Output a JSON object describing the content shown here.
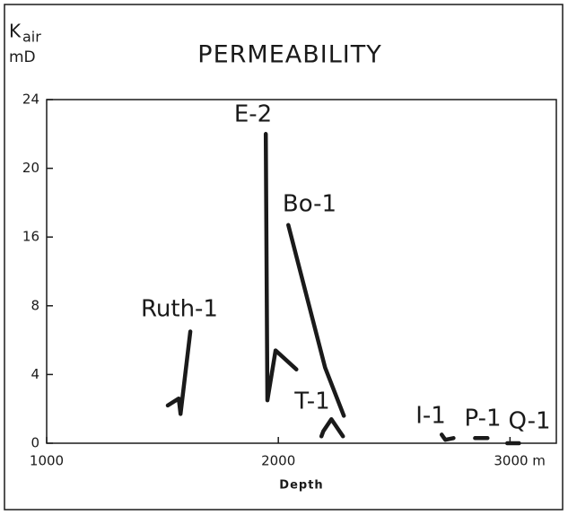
{
  "chart_data": {
    "type": "line",
    "title": "PERMEABILITY",
    "y_label": {
      "symbol": "K",
      "subscript": "air",
      "unit": "mD"
    },
    "x_label": "Depth",
    "xlim": [
      1000,
      3200
    ],
    "xticks": [
      1000,
      2000,
      {
        "value": 3000,
        "label": "3000 m"
      }
    ],
    "ylim": [
      0,
      24
    ],
    "yticks": [
      0,
      4,
      8,
      16,
      20,
      24
    ],
    "color": "#1a1a1a",
    "series": [
      {
        "name": "Ruth-1",
        "x": [
          1523,
          1570,
          1578,
          1620
        ],
        "values": [
          2.2,
          2.6,
          1.7,
          6.5
        ]
      },
      {
        "name": "E-2",
        "x": [
          1946,
          1953,
          1988,
          2078
        ],
        "values": [
          22,
          2.5,
          5.4,
          4.3
        ]
      },
      {
        "name": "Bo-1",
        "x": [
          2043,
          2202,
          2283
        ],
        "values": [
          16.7,
          4.4,
          1.6
        ]
      },
      {
        "name": "T-1",
        "x": [
          2186,
          2194,
          2229,
          2279
        ],
        "values": [
          0.4,
          0.7,
          1.4,
          0.4
        ]
      },
      {
        "name": "I-1",
        "x": [
          2705,
          2721,
          2756
        ],
        "values": [
          0.5,
          0.2,
          0.3
        ]
      },
      {
        "name": "P-1",
        "x": [
          2849,
          2903
        ],
        "values": [
          0.3,
          0.3
        ]
      },
      {
        "name": "Q-1",
        "x": [
          2988,
          3039
        ],
        "values": [
          0,
          0
        ]
      }
    ]
  }
}
